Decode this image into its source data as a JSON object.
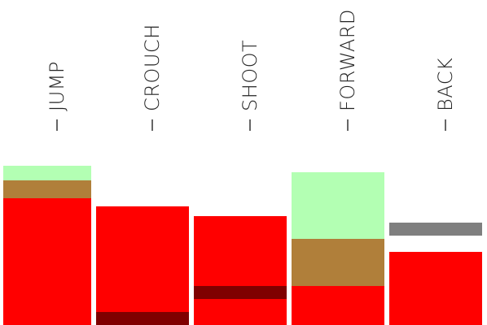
{
  "colors": {
    "bright_red": "#ff0000",
    "dark_red": "#7f0000",
    "brown": "#b07f3a",
    "light_green": "#b3ffb3",
    "gray": "#7f7f7f"
  },
  "actions": [
    {
      "label": "JUMP",
      "segments": [
        {
          "color": "bright_red",
          "height": 156
        },
        {
          "color": "brown",
          "height": 22
        },
        {
          "color": "light_green",
          "height": 18
        }
      ]
    },
    {
      "label": "CROUCH",
      "segments": [
        {
          "color": "dark_red",
          "height": 16
        },
        {
          "color": "bright_red",
          "height": 130
        }
      ]
    },
    {
      "label": "SHOOT",
      "segments": [
        {
          "color": "bright_red",
          "height": 32
        },
        {
          "color": "dark_red",
          "height": 16
        },
        {
          "color": "bright_red",
          "height": 86
        }
      ]
    },
    {
      "label": "FORWARD",
      "segments": [
        {
          "color": "bright_red",
          "height": 48
        },
        {
          "color": "brown",
          "height": 58
        },
        {
          "color": "light_green",
          "height": 82
        }
      ]
    },
    {
      "label": "BACK",
      "segments": [
        {
          "color": "bright_red",
          "height": 90
        },
        {
          "color": "white",
          "height": 20
        },
        {
          "color": "gray",
          "height": 16
        }
      ]
    }
  ]
}
